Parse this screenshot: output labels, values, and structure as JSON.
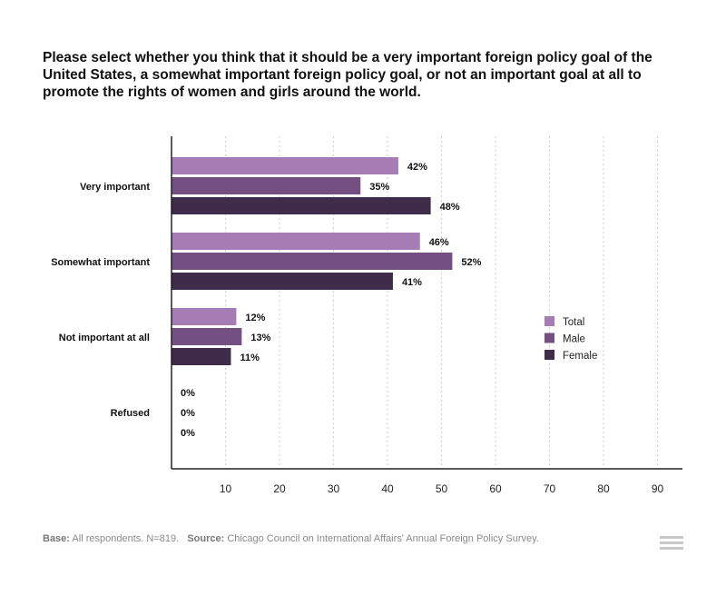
{
  "title": "Please select whether you think that it should be a very important foreign policy goal of the United States, a somewhat important foreign policy goal, or not an important goal at all to promote the rights of women and girls around the world.",
  "footer": {
    "base_label": "Base:",
    "base_text": "All respondents. N=819.",
    "source_label": "Source:",
    "source_text": "Chicago Council on International Affairs' Annual Foreign Policy Survey."
  },
  "chart_data": {
    "type": "bar",
    "orientation": "horizontal",
    "title": "",
    "xlabel": "",
    "ylabel": "",
    "xlim": [
      0,
      95
    ],
    "xticks": [
      10,
      20,
      30,
      40,
      50,
      60,
      70,
      80,
      90
    ],
    "grid": true,
    "categories": [
      "Very important",
      "Somewhat important",
      "Not important at all",
      "Refused"
    ],
    "series": [
      {
        "name": "Total",
        "color": "#a67cb5",
        "values": [
          42,
          46,
          12,
          0
        ],
        "labels": [
          "42%",
          "46%",
          "12%",
          "0%"
        ]
      },
      {
        "name": "Male",
        "color": "#745082",
        "values": [
          35,
          52,
          13,
          0
        ],
        "labels": [
          "35%",
          "52%",
          "13%",
          "0%"
        ]
      },
      {
        "name": "Female",
        "color": "#3e2c4a",
        "values": [
          48,
          41,
          11,
          0
        ],
        "labels": [
          "48%",
          "41%",
          "11%",
          "0%"
        ]
      }
    ],
    "legend": {
      "position": "right",
      "entries": [
        "Total",
        "Male",
        "Female"
      ]
    }
  }
}
